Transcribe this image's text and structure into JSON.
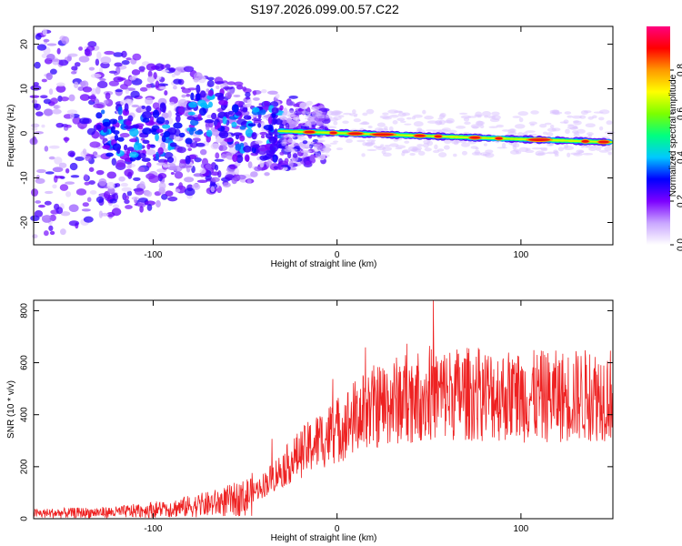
{
  "title": "S197.2026.099.00.57.C22",
  "chart_data": [
    {
      "type": "heatmap",
      "name": "spectrogram",
      "xlabel": "Height of straight line (km)",
      "ylabel": "Frequency (Hz)",
      "xlim": [
        -165,
        150
      ],
      "ylim": [
        -25,
        24
      ],
      "xticks": [
        -100,
        0,
        100
      ],
      "yticks": [
        -20,
        -10,
        0,
        10,
        20
      ],
      "colorbar": {
        "label": "Normalized spectral amplitude",
        "range": [
          0,
          1
        ],
        "ticks": [
          "0.0",
          "0.2",
          "0.4",
          "0.6",
          "0.8"
        ],
        "tick_values": [
          0,
          0.2,
          0.4,
          0.6,
          0.8
        ],
        "colors": [
          "#ffffff",
          "#c9a6ff",
          "#7c00ff",
          "#0000ff",
          "#00c8ff",
          "#00ff80",
          "#7cff00",
          "#ffff00",
          "#ff9900",
          "#ff0000",
          "#ff0080"
        ]
      },
      "ridge": {
        "description": "strong narrow signal near 0 Hz for heights above about -30 km, drifting to about -2 Hz at 150 km",
        "start_x": -30,
        "end_x": 150,
        "start_freq": 0.5,
        "end_freq": -2
      },
      "noise_region": {
        "x_range": [
          -165,
          -30
        ],
        "freq_spread": 24
      }
    },
    {
      "type": "line",
      "name": "snr",
      "xlabel": "Height of straight line (km)",
      "ylabel": "SNR (10 * v/v)",
      "xlim": [
        -165,
        150
      ],
      "ylim": [
        0,
        840
      ],
      "xticks": [
        -100,
        0,
        100
      ],
      "yticks": [
        0,
        200,
        400,
        600,
        800
      ],
      "color": "#ee2222",
      "trend_x": [
        -165,
        -120,
        -90,
        -70,
        -50,
        -40,
        -30,
        -20,
        -10,
        0,
        10,
        20,
        40,
        60,
        80,
        100,
        120,
        150
      ],
      "trend_y": [
        20,
        25,
        40,
        55,
        80,
        130,
        190,
        250,
        300,
        340,
        390,
        430,
        470,
        480,
        480,
        470,
        470,
        480
      ]
    }
  ]
}
